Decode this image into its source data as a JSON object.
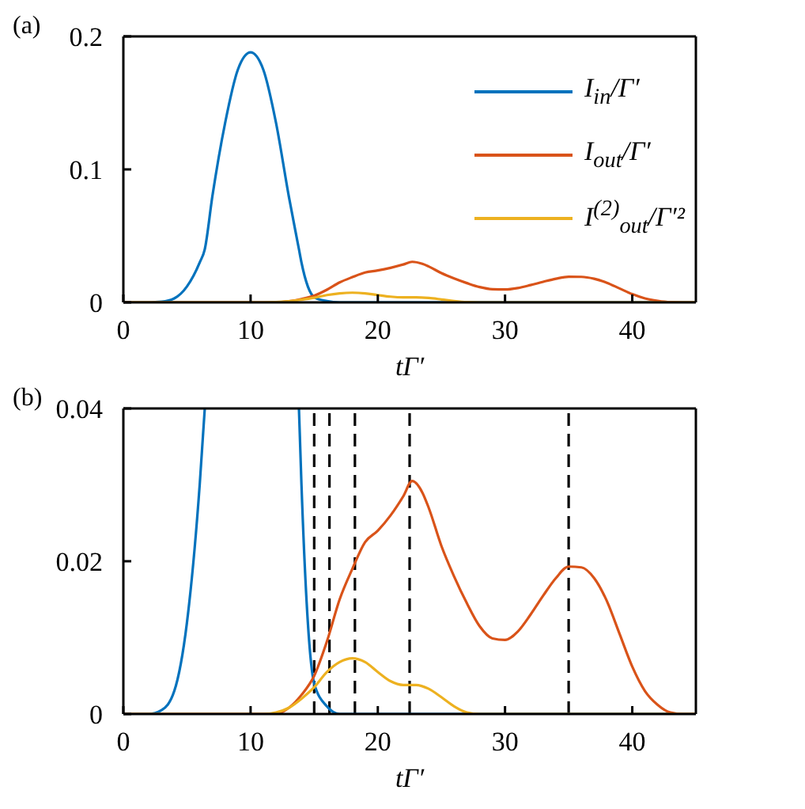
{
  "chart_data": [
    {
      "type": "line",
      "annotations": [
        "(a)"
      ],
      "xlabel": "tΓ′",
      "xlim": [
        0,
        45
      ],
      "xticks": [
        0,
        10,
        20,
        30,
        40
      ],
      "ylim": [
        0,
        0.2
      ],
      "yticks": [
        0,
        0.1,
        0.2
      ],
      "grid": false,
      "legend": "top right",
      "marker": "none",
      "line_style": "solid",
      "series": [
        {
          "name": "I$_{in}$/Γ′",
          "color": "#0072bd",
          "x": [
            0,
            2,
            3,
            4,
            5,
            6,
            6.4,
            7,
            8,
            9,
            10,
            11,
            12,
            13,
            13.8,
            14,
            14.5,
            15,
            16,
            17,
            45
          ],
          "values": [
            0,
            0,
            0.0005,
            0.003,
            0.012,
            0.03,
            0.04,
            0.08,
            0.135,
            0.175,
            0.188,
            0.175,
            0.135,
            0.08,
            0.04,
            0.03,
            0.012,
            0.004,
            0.001,
            0,
            0
          ]
        },
        {
          "name": "I$_{out}$/Γ′",
          "color": "#d95319",
          "x": [
            0,
            12,
            13,
            14,
            15,
            16,
            17,
            18,
            19,
            20,
            21,
            22,
            22.7,
            23.5,
            24,
            25,
            26,
            27,
            28,
            29,
            30,
            31,
            32,
            33,
            34,
            35,
            36,
            37,
            38,
            39,
            40,
            41,
            42,
            43,
            44,
            45
          ],
          "values": [
            0,
            0,
            0.0008,
            0.0025,
            0.005,
            0.0095,
            0.015,
            0.019,
            0.0225,
            0.024,
            0.026,
            0.0285,
            0.0305,
            0.029,
            0.027,
            0.022,
            0.018,
            0.0145,
            0.0115,
            0.0099,
            0.0097,
            0.0108,
            0.013,
            0.0155,
            0.0178,
            0.0193,
            0.0192,
            0.0178,
            0.0148,
            0.0105,
            0.0062,
            0.003,
            0.0012,
            0.0002,
            0,
            0
          ]
        },
        {
          "name": "I$^{(2)}$$_{out}$/Γ′²",
          "color": "#edb120",
          "x": [
            0,
            11,
            12,
            13,
            14,
            15,
            16,
            17,
            18,
            19,
            20,
            21,
            22,
            23,
            24,
            25,
            26,
            27,
            28,
            45
          ],
          "values": [
            0,
            0,
            0.0002,
            0.0008,
            0.002,
            0.0035,
            0.0055,
            0.0068,
            0.0073,
            0.0068,
            0.0055,
            0.0043,
            0.0038,
            0.0038,
            0.0033,
            0.0022,
            0.001,
            0.0002,
            0,
            0
          ]
        }
      ]
    },
    {
      "type": "line",
      "annotations": [
        "(b)"
      ],
      "xlabel": "tΓ′",
      "xlim": [
        0,
        45
      ],
      "xticks": [
        0,
        10,
        20,
        30,
        40
      ],
      "ylim": [
        0,
        0.04
      ],
      "yticks": [
        0,
        0.02,
        0.04
      ],
      "grid": false,
      "marker": "none",
      "line_style": "solid",
      "ref_lines": [
        {
          "axis": "x",
          "value": 15,
          "color": "#000000",
          "line_style": "dashed"
        },
        {
          "axis": "x",
          "value": 16.2,
          "color": "#000000",
          "line_style": "dashed"
        },
        {
          "axis": "x",
          "value": 18.2,
          "color": "#000000",
          "line_style": "dashed"
        },
        {
          "axis": "x",
          "value": 22.5,
          "color": "#000000",
          "line_style": "dashed"
        },
        {
          "axis": "x",
          "value": 35,
          "color": "#000000",
          "line_style": "dashed"
        }
      ],
      "series": [
        {
          "color": "#0072bd",
          "x": [
            0,
            2,
            3,
            4,
            5,
            6,
            6.4,
            10,
            13.8,
            14,
            14.5,
            15,
            16,
            17,
            45
          ],
          "values": [
            0,
            0,
            0.0005,
            0.003,
            0.012,
            0.03,
            0.04,
            null,
            0.04,
            0.03,
            0.012,
            0.004,
            0.001,
            0,
            0
          ]
        },
        {
          "color": "#d95319",
          "x": [
            0,
            12,
            13,
            14,
            15,
            16,
            17,
            18,
            19,
            20,
            21,
            22,
            22.7,
            23.5,
            24,
            25,
            26,
            27,
            28,
            29,
            30,
            31,
            32,
            33,
            34,
            35,
            36,
            37,
            38,
            39,
            40,
            41,
            42,
            43,
            44,
            45
          ],
          "values": [
            0,
            0,
            0.0008,
            0.0025,
            0.005,
            0.0095,
            0.015,
            0.019,
            0.0225,
            0.024,
            0.026,
            0.0285,
            0.0305,
            0.029,
            0.027,
            0.022,
            0.018,
            0.0145,
            0.0115,
            0.0099,
            0.0097,
            0.0108,
            0.013,
            0.0155,
            0.0178,
            0.0193,
            0.0192,
            0.0178,
            0.0148,
            0.0105,
            0.0062,
            0.003,
            0.0012,
            0.0002,
            0,
            0
          ]
        },
        {
          "color": "#edb120",
          "x": [
            0,
            11,
            12,
            13,
            14,
            15,
            16,
            17,
            18,
            19,
            20,
            21,
            22,
            23,
            24,
            25,
            26,
            27,
            28,
            45
          ],
          "values": [
            0,
            0,
            0.0002,
            0.0008,
            0.002,
            0.0035,
            0.0055,
            0.0068,
            0.0073,
            0.0068,
            0.0055,
            0.0043,
            0.0038,
            0.0038,
            0.0033,
            0.0022,
            0.001,
            0.0002,
            0,
            0
          ]
        }
      ]
    }
  ]
}
